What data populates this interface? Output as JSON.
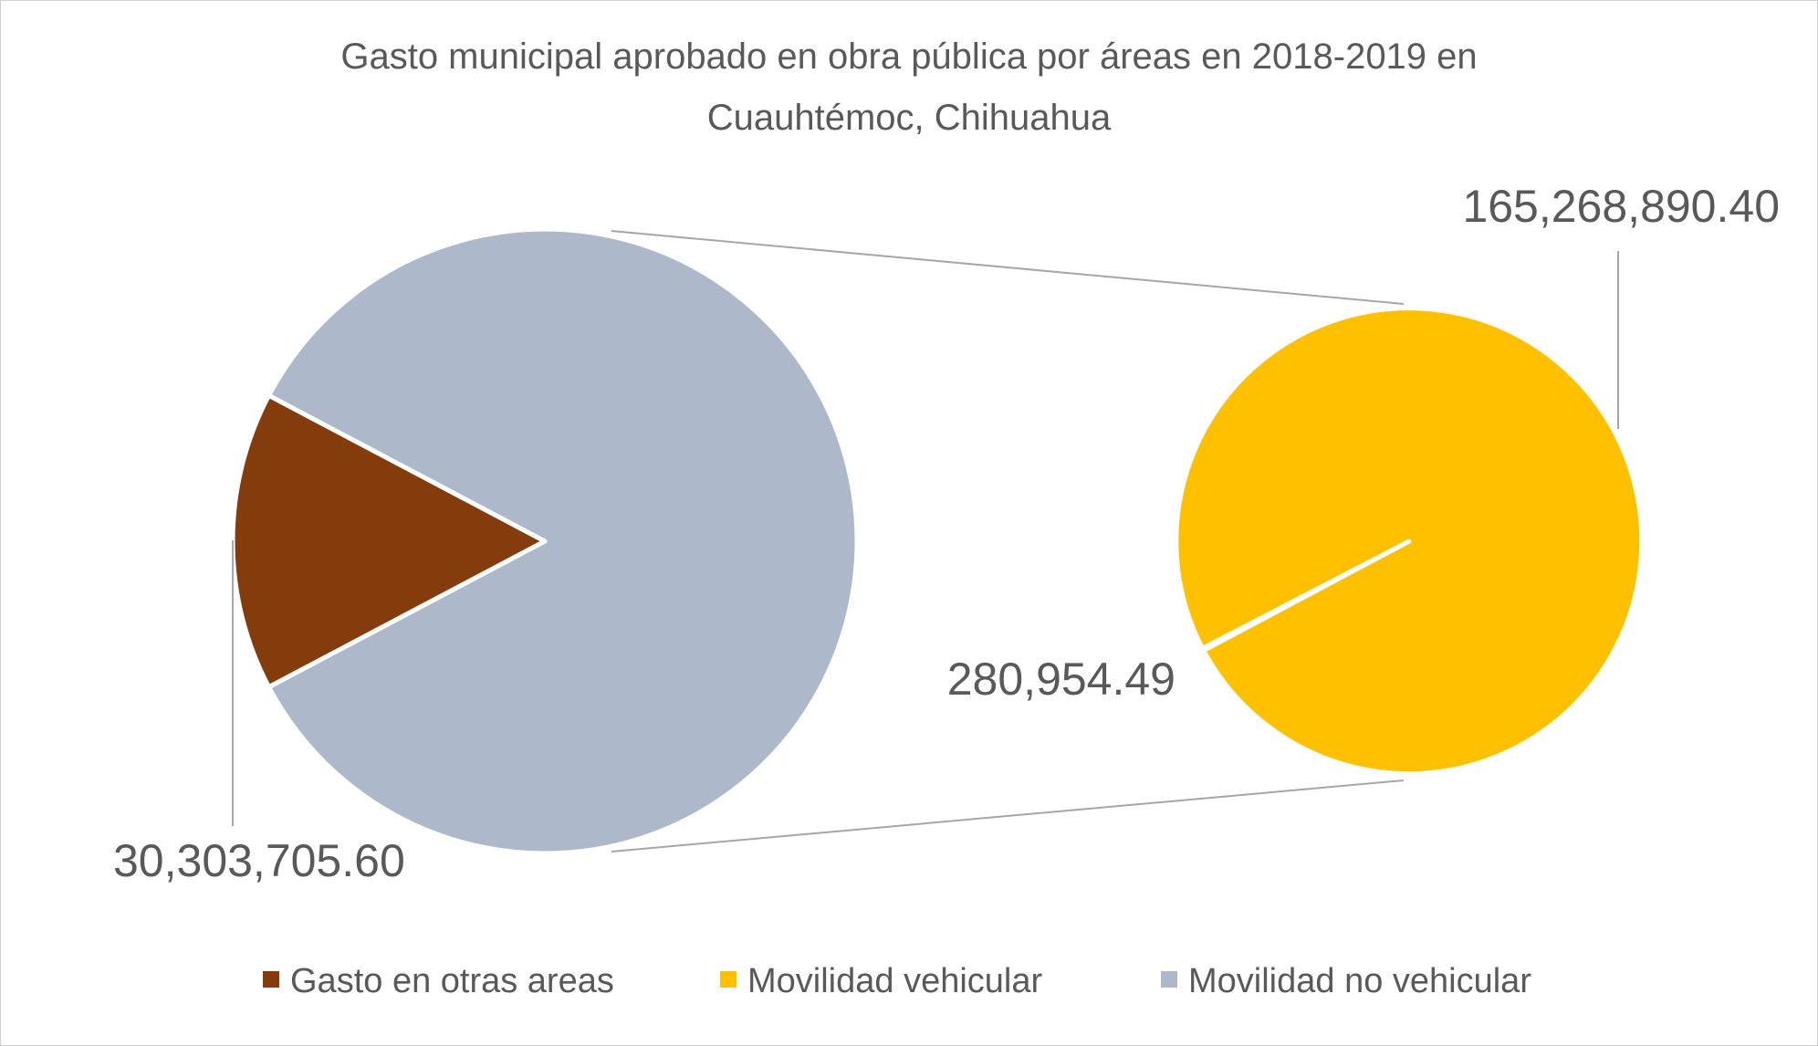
{
  "chart_data": {
    "type": "pie",
    "subtype": "pie-of-pie",
    "title_lines": [
      "Gasto municipal aprobado en obra pública por áreas en 2018-2019 en",
      "Cuauhtémoc, Chihuahua"
    ],
    "main_pie": {
      "slices": [
        {
          "name": "Gasto en otras areas",
          "value": 30303705.6,
          "label": "30,303,705.60",
          "color": "#843C0C"
        },
        {
          "name": "Movilidad no vehicular",
          "value": 165549844.89,
          "label": "",
          "color": "#ADB9CA"
        }
      ]
    },
    "secondary_pie": {
      "slices": [
        {
          "name": "Movilidad vehicular",
          "value": 165268890.4,
          "label": "165,268,890.40",
          "color": "#FFC000"
        },
        {
          "name": "Movilidad vehicular",
          "value": 280954.49,
          "label": "280,954.49",
          "color": "#FFC000"
        }
      ]
    },
    "legend": [
      {
        "label": "Gasto en otras areas",
        "color": "#843C0C"
      },
      {
        "label": "Movilidad vehicular",
        "color": "#FFC000"
      },
      {
        "label": "Movilidad no vehicular",
        "color": "#ADB9CA"
      }
    ],
    "legend_position": "bottom"
  }
}
